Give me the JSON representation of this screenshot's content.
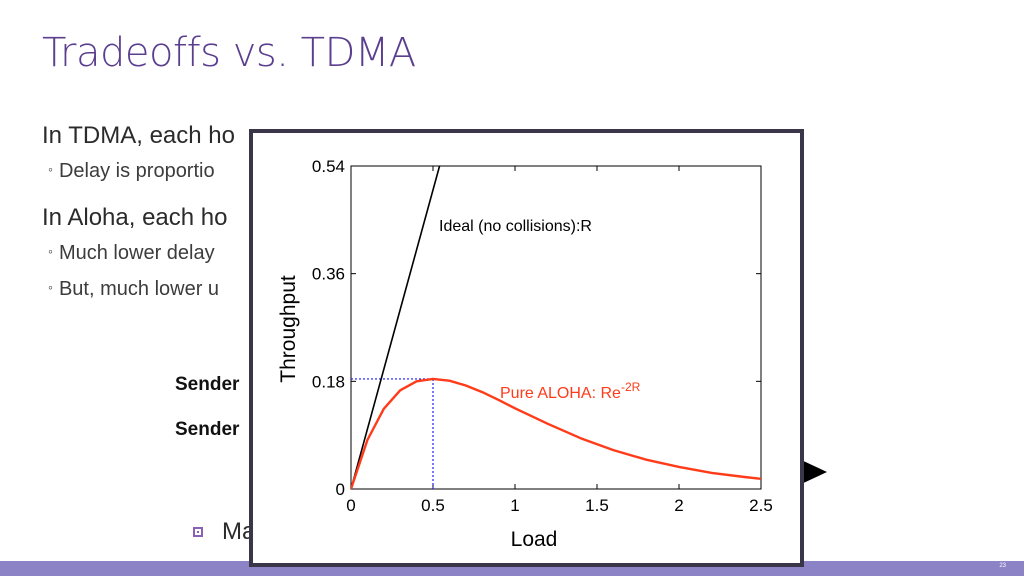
{
  "slide": {
    "title": "Tradeoffs vs. TDMA",
    "bullets": [
      {
        "level": 1,
        "text": "In TDMA, each ho"
      },
      {
        "level": 2,
        "text": "Delay is proportio"
      },
      {
        "level": 1,
        "text": "In Aloha, each ho"
      },
      {
        "level": 2,
        "text": "Much lower delay"
      },
      {
        "level": 2,
        "text": "But, much lower u"
      }
    ],
    "senders": [
      "Sender",
      "Sender"
    ],
    "partial_text": "Ma",
    "slide_number": "23"
  },
  "colors": {
    "title": "#5b3f8f",
    "footer": "#8c83c6",
    "ideal_line": "#000000",
    "aloha_curve": "#ff3b1a",
    "dotted": "#1a1aff"
  },
  "chart_data": {
    "type": "line",
    "xlabel": "Load",
    "ylabel": "Throughput",
    "xlim": [
      0,
      2.5
    ],
    "ylim": [
      0,
      0.54
    ],
    "xticks": [
      "0",
      "0.5",
      "1",
      "1.5",
      "2",
      "2.5"
    ],
    "yticks": [
      "0",
      "0.18",
      "0.36",
      "0.54"
    ],
    "series": [
      {
        "name": "Ideal (no collisions):R",
        "x": [
          0,
          0.54
        ],
        "y": [
          0,
          0.54
        ]
      },
      {
        "name": "Pure ALOHA: Re-2R",
        "label_base": "Pure ALOHA: Re",
        "label_sup": "-2R",
        "x": [
          0,
          0.1,
          0.2,
          0.3,
          0.4,
          0.5,
          0.6,
          0.7,
          0.8,
          0.9,
          1.0,
          1.2,
          1.4,
          1.6,
          1.8,
          2.0,
          2.2,
          2.4,
          2.5
        ],
        "y": [
          0,
          0.082,
          0.134,
          0.165,
          0.18,
          0.184,
          0.181,
          0.173,
          0.162,
          0.149,
          0.135,
          0.109,
          0.085,
          0.065,
          0.049,
          0.037,
          0.027,
          0.02,
          0.017
        ]
      }
    ],
    "annotation": {
      "x": 0.5,
      "y": 0.184
    }
  }
}
